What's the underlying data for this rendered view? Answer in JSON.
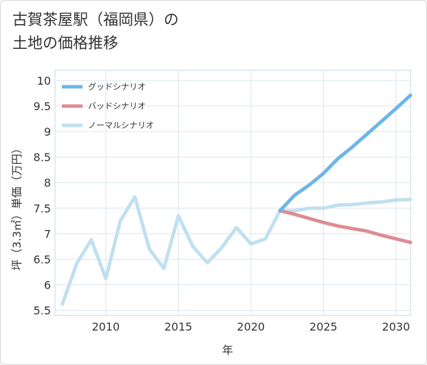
{
  "title": {
    "line1": "古賀茶屋駅（福岡県）の",
    "line2": "土地の価格推移"
  },
  "chart_data": {
    "type": "line",
    "xlabel": "年",
    "ylabel": "坪（3.3㎡）単価（万円）",
    "xlim": [
      2006.5,
      2031
    ],
    "ylim": [
      5.4,
      10.2
    ],
    "xticks": [
      2010,
      2015,
      2020,
      2025,
      2030
    ],
    "yticks": [
      5.5,
      6,
      6.5,
      7,
      7.5,
      8,
      8.5,
      9,
      9.5,
      10
    ],
    "ytick_labels": [
      "5.5",
      "6",
      "6.5",
      "7",
      "7.5",
      "8",
      "8.5",
      "9",
      "9.5",
      "10"
    ],
    "grid": true,
    "legend_position": "top-left",
    "series": [
      {
        "name": "グッドシナリオ",
        "color": "#6cb5e8",
        "x": [
          2022,
          2023,
          2024,
          2025,
          2026,
          2027,
          2028,
          2029,
          2030,
          2031
        ],
        "values": [
          7.45,
          7.75,
          7.95,
          8.18,
          8.47,
          8.7,
          8.95,
          9.2,
          9.45,
          9.71
        ]
      },
      {
        "name": "バッドシナリオ",
        "color": "#de8c93",
        "x": [
          2022,
          2023,
          2024,
          2025,
          2026,
          2027,
          2028,
          2029,
          2030,
          2031
        ],
        "values": [
          7.45,
          7.38,
          7.3,
          7.22,
          7.15,
          7.1,
          7.05,
          6.97,
          6.9,
          6.83
        ]
      },
      {
        "name": "ノーマルシナリオ",
        "color": "#bfe0ef",
        "x": [
          2007,
          2008,
          2009,
          2010,
          2011,
          2012,
          2013,
          2014,
          2015,
          2016,
          2017,
          2018,
          2019,
          2020,
          2021,
          2022,
          2023,
          2024,
          2025,
          2026,
          2027,
          2028,
          2029,
          2030,
          2031
        ],
        "values": [
          5.62,
          6.42,
          6.88,
          6.12,
          7.25,
          7.72,
          6.7,
          6.32,
          7.35,
          6.75,
          6.43,
          6.73,
          7.12,
          6.8,
          6.9,
          7.45,
          7.45,
          7.5,
          7.5,
          7.56,
          7.57,
          7.6,
          7.62,
          7.66,
          7.67
        ]
      }
    ]
  }
}
